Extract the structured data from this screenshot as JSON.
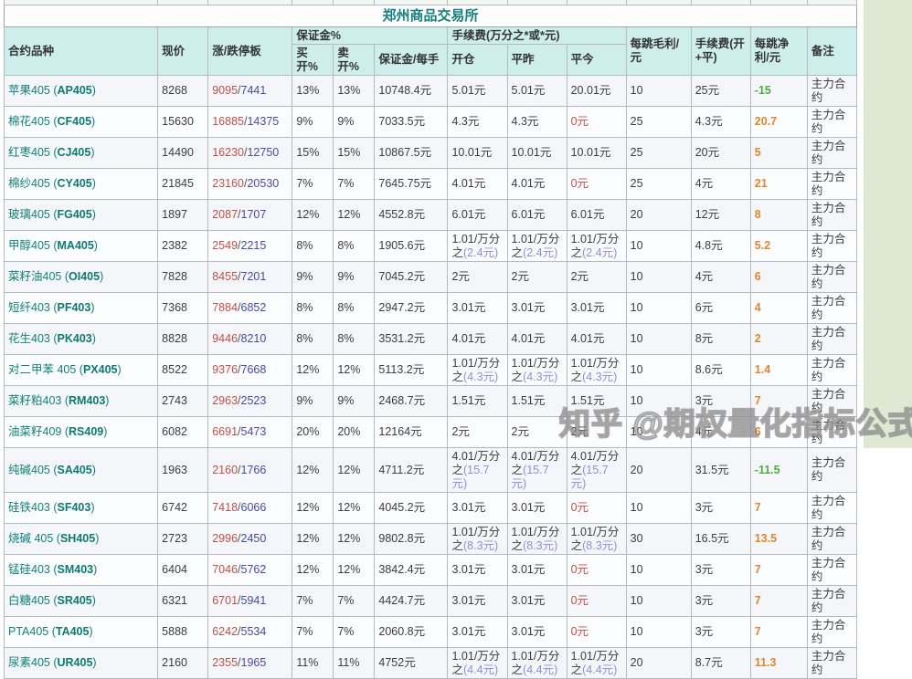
{
  "title": "郑州商品交易所",
  "watermark": "知乎 @期权量化指标公式",
  "columns": {
    "variety": "合约品种",
    "price": "现价",
    "limit": "涨/跌停板",
    "margin_group": "保证金%",
    "buy_open": "买开%",
    "sell_open": "卖开%",
    "margin_per_lot": "保证金/每手",
    "fee_group": "手续费(万分之*或*元)",
    "open_fee": "开仓",
    "close_yesterday": "平昨",
    "close_today": "平今",
    "gross_per_tick": "每跳毛利/元",
    "fee_open_close": "手续费(开+平)",
    "net_per_tick": "每跳净利/元",
    "remark": "备注"
  },
  "colors": {
    "header_bg": "#cdeeeb",
    "title_text": "#17807d",
    "limit_up": "#c05048",
    "limit_down": "#4a4aa0",
    "fee_sub": "#8d8fd6",
    "net_positive": "#e0862c",
    "net_negative": "#4fae43",
    "right_margin_bg": "#dfe8d2"
  },
  "rows": [
    {
      "name": "苹果405",
      "code": "AP405",
      "price": "8268",
      "up": "9095",
      "down": "7441",
      "buy": "13%",
      "sell": "13%",
      "margin": "10748.4元",
      "open": {
        "t": "5.01元"
      },
      "yest": {
        "t": "5.01元"
      },
      "today": {
        "t": "20.01元"
      },
      "gross": "10",
      "fee": "25元",
      "net": "-15",
      "remark": "主力合约"
    },
    {
      "name": "棉花405",
      "code": "CF405",
      "price": "15630",
      "up": "16885",
      "down": "14375",
      "buy": "9%",
      "sell": "9%",
      "margin": "7033.5元",
      "open": {
        "t": "4.3元"
      },
      "yest": {
        "t": "4.3元"
      },
      "today": {
        "t": "0元",
        "red": true
      },
      "gross": "25",
      "fee": "4.3元",
      "net": "20.7",
      "remark": "主力合约"
    },
    {
      "name": "红枣405",
      "code": "CJ405",
      "price": "14490",
      "up": "16230",
      "down": "12750",
      "buy": "15%",
      "sell": "15%",
      "margin": "10867.5元",
      "open": {
        "t": "10.01元"
      },
      "yest": {
        "t": "10.01元"
      },
      "today": {
        "t": "10.01元"
      },
      "gross": "25",
      "fee": "20元",
      "net": "5",
      "remark": "主力合约"
    },
    {
      "name": "棉纱405",
      "code": "CY405",
      "price": "21845",
      "up": "23160",
      "down": "20530",
      "buy": "7%",
      "sell": "7%",
      "margin": "7645.75元",
      "open": {
        "t": "4.01元"
      },
      "yest": {
        "t": "4.01元"
      },
      "today": {
        "t": "0元",
        "red": true
      },
      "gross": "25",
      "fee": "4元",
      "net": "21",
      "remark": "主力合约"
    },
    {
      "name": "玻璃405",
      "code": "FG405",
      "price": "1897",
      "up": "2087",
      "down": "1707",
      "buy": "12%",
      "sell": "12%",
      "margin": "4552.8元",
      "open": {
        "t": "6.01元"
      },
      "yest": {
        "t": "6.01元"
      },
      "today": {
        "t": "6.01元"
      },
      "gross": "20",
      "fee": "12元",
      "net": "8",
      "remark": "主力合约"
    },
    {
      "name": "甲醇405",
      "code": "MA405",
      "price": "2382",
      "up": "2549",
      "down": "2215",
      "buy": "8%",
      "sell": "8%",
      "margin": "1905.6元",
      "open": {
        "t": "1.01/万分之",
        "s": "(2.4元)"
      },
      "yest": {
        "t": "1.01/万分之",
        "s": "(2.4元)"
      },
      "today": {
        "t": "1.01/万分之",
        "s": "(2.4元)"
      },
      "gross": "10",
      "fee": "4.8元",
      "net": "5.2",
      "remark": "主力合约"
    },
    {
      "name": "菜籽油405",
      "code": "OI405",
      "price": "7828",
      "up": "8455",
      "down": "7201",
      "buy": "9%",
      "sell": "9%",
      "margin": "7045.2元",
      "open": {
        "t": "2元"
      },
      "yest": {
        "t": "2元"
      },
      "today": {
        "t": "2元"
      },
      "gross": "10",
      "fee": "4元",
      "net": "6",
      "remark": "主力合约"
    },
    {
      "name": "短纤403",
      "code": "PF403",
      "price": "7368",
      "up": "7884",
      "down": "6852",
      "buy": "8%",
      "sell": "8%",
      "margin": "2947.2元",
      "open": {
        "t": "3.01元"
      },
      "yest": {
        "t": "3.01元"
      },
      "today": {
        "t": "3.01元"
      },
      "gross": "10",
      "fee": "6元",
      "net": "4",
      "remark": "主力合约"
    },
    {
      "name": "花生403",
      "code": "PK403",
      "price": "8828",
      "up": "9446",
      "down": "8210",
      "buy": "8%",
      "sell": "8%",
      "margin": "3531.2元",
      "open": {
        "t": "4.01元"
      },
      "yest": {
        "t": "4.01元"
      },
      "today": {
        "t": "4.01元"
      },
      "gross": "10",
      "fee": "8元",
      "net": "2",
      "remark": "主力合约"
    },
    {
      "name": "对二甲苯 405",
      "code": "PX405",
      "price": "8522",
      "up": "9376",
      "down": "7668",
      "buy": "12%",
      "sell": "12%",
      "margin": "5113.2元",
      "open": {
        "t": "1.01/万分之",
        "s": "(4.3元)"
      },
      "yest": {
        "t": "1.01/万分之",
        "s": "(4.3元)"
      },
      "today": {
        "t": "1.01/万分之",
        "s": "(4.3元)"
      },
      "gross": "10",
      "fee": "8.6元",
      "net": "1.4",
      "remark": "主力合约"
    },
    {
      "name": "菜籽粕403",
      "code": "RM403",
      "price": "2743",
      "up": "2963",
      "down": "2523",
      "buy": "9%",
      "sell": "9%",
      "margin": "2468.7元",
      "open": {
        "t": "1.51元"
      },
      "yest": {
        "t": "1.51元"
      },
      "today": {
        "t": "1.51元"
      },
      "gross": "10",
      "fee": "3元",
      "net": "7",
      "remark": "主力合约"
    },
    {
      "name": "油菜籽409",
      "code": "RS409",
      "price": "6082",
      "up": "6691",
      "down": "5473",
      "buy": "20%",
      "sell": "20%",
      "margin": "12164元",
      "open": {
        "t": "2元"
      },
      "yest": {
        "t": "2元"
      },
      "today": {
        "t": "2元"
      },
      "gross": "10",
      "fee": "4元",
      "net": "6",
      "remark": "主力合约"
    },
    {
      "name": "纯碱405",
      "code": "SA405",
      "price": "1963",
      "up": "2160",
      "down": "1766",
      "buy": "12%",
      "sell": "12%",
      "margin": "4711.2元",
      "open": {
        "t": "4.01/万分之",
        "s": "(15.7元)"
      },
      "yest": {
        "t": "4.01/万分之",
        "s": "(15.7元)"
      },
      "today": {
        "t": "4.01/万分之",
        "s": "(15.7元)"
      },
      "gross": "20",
      "fee": "31.5元",
      "net": "-11.5",
      "remark": "主力合约"
    },
    {
      "name": "硅铁403",
      "code": "SF403",
      "price": "6742",
      "up": "7418",
      "down": "6066",
      "buy": "12%",
      "sell": "12%",
      "margin": "4045.2元",
      "open": {
        "t": "3.01元"
      },
      "yest": {
        "t": "3.01元"
      },
      "today": {
        "t": "0元",
        "red": true
      },
      "gross": "10",
      "fee": "3元",
      "net": "7",
      "remark": "主力合约"
    },
    {
      "name": "烧碱 405",
      "code": "SH405",
      "price": "2723",
      "up": "2996",
      "down": "2450",
      "buy": "12%",
      "sell": "12%",
      "margin": "9802.8元",
      "open": {
        "t": "1.01/万分之",
        "s": "(8.3元)"
      },
      "yest": {
        "t": "1.01/万分之",
        "s": "(8.3元)"
      },
      "today": {
        "t": "1.01/万分之",
        "s": "(8.3元)"
      },
      "gross": "30",
      "fee": "16.5元",
      "net": "13.5",
      "remark": "主力合约"
    },
    {
      "name": "锰硅403",
      "code": "SM403",
      "price": "6404",
      "up": "7046",
      "down": "5762",
      "buy": "12%",
      "sell": "12%",
      "margin": "3842.4元",
      "open": {
        "t": "3.01元"
      },
      "yest": {
        "t": "3.01元"
      },
      "today": {
        "t": "0元",
        "red": true
      },
      "gross": "10",
      "fee": "3元",
      "net": "7",
      "remark": "主力合约"
    },
    {
      "name": "白糖405",
      "code": "SR405",
      "price": "6321",
      "up": "6701",
      "down": "5941",
      "buy": "7%",
      "sell": "7%",
      "margin": "4424.7元",
      "open": {
        "t": "3.01元"
      },
      "yest": {
        "t": "3.01元"
      },
      "today": {
        "t": "0元",
        "red": true
      },
      "gross": "10",
      "fee": "3元",
      "net": "7",
      "remark": "主力合约"
    },
    {
      "name": "PTA405",
      "code": "TA405",
      "price": "5888",
      "up": "6242",
      "down": "5534",
      "buy": "7%",
      "sell": "7%",
      "margin": "2060.8元",
      "open": {
        "t": "3.01元"
      },
      "yest": {
        "t": "3.01元"
      },
      "today": {
        "t": "0元",
        "red": true
      },
      "gross": "10",
      "fee": "3元",
      "net": "7",
      "remark": "主力合约"
    },
    {
      "name": "尿素405",
      "code": "UR405",
      "price": "2160",
      "up": "2355",
      "down": "1965",
      "buy": "11%",
      "sell": "11%",
      "margin": "4752元",
      "open": {
        "t": "1.01/万分之",
        "s": "(4.4元)"
      },
      "yest": {
        "t": "1.01/万分之",
        "s": "(4.4元)"
      },
      "today": {
        "t": "1.01/万分之",
        "s": "(4.4元)"
      },
      "gross": "20",
      "fee": "8.7元",
      "net": "11.3",
      "remark": "主力合约"
    }
  ]
}
